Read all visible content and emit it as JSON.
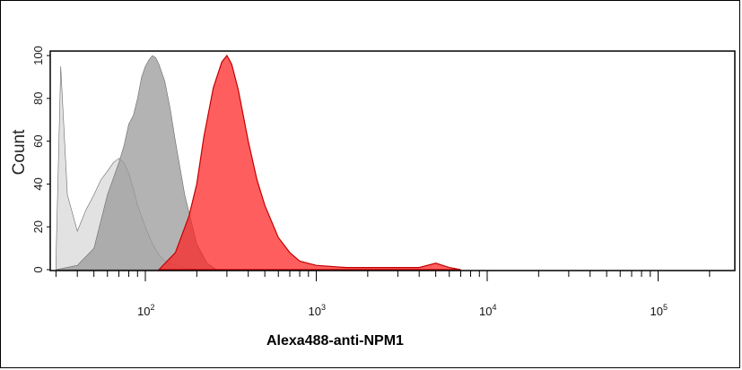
{
  "chart_data": {
    "type": "area",
    "title": "",
    "xlabel": "Alexa488-anti-NPM1",
    "ylabel": "Count",
    "x_scale": "log",
    "xlim": [
      30,
      300000
    ],
    "ylim": [
      0,
      100
    ],
    "x_tick_labels": [
      {
        "base": "10",
        "exp": "2",
        "value": 100
      },
      {
        "base": "10",
        "exp": "3",
        "value": 1000
      },
      {
        "base": "10",
        "exp": "4",
        "value": 10000
      },
      {
        "base": "10",
        "exp": "5",
        "value": 100000
      }
    ],
    "y_tick_labels": [
      "0",
      "20",
      "40",
      "60",
      "80",
      "100"
    ],
    "grid": false,
    "series": [
      {
        "color": "#d8d8d8",
        "x": [
          30,
          32,
          35,
          40,
          45,
          50,
          55,
          60,
          65,
          70,
          75,
          80,
          85,
          90,
          100,
          110,
          120,
          130,
          150,
          170,
          200
        ],
        "values": [
          5,
          95,
          35,
          18,
          28,
          35,
          42,
          46,
          50,
          52,
          50,
          45,
          38,
          30,
          20,
          12,
          7,
          4,
          2,
          1,
          0
        ]
      },
      {
        "color": "#9a9a9a",
        "x": [
          30,
          40,
          50,
          60,
          70,
          75,
          80,
          85,
          90,
          95,
          100,
          105,
          110,
          115,
          120,
          130,
          140,
          150,
          170,
          200,
          230,
          260
        ],
        "values": [
          0,
          2,
          10,
          35,
          50,
          58,
          68,
          72,
          80,
          90,
          95,
          98,
          100,
          99,
          96,
          88,
          75,
          60,
          35,
          12,
          3,
          0
        ]
      },
      {
        "color": "#ff2020",
        "x": [
          120,
          150,
          180,
          200,
          220,
          250,
          280,
          300,
          320,
          350,
          400,
          450,
          500,
          600,
          700,
          800,
          1000,
          1500,
          2000,
          3000,
          4000,
          5000,
          6000,
          7000
        ],
        "values": [
          0,
          8,
          25,
          40,
          62,
          85,
          97,
          100,
          96,
          84,
          60,
          42,
          30,
          15,
          8,
          4,
          2,
          1,
          1,
          1,
          1,
          3,
          1,
          0
        ]
      }
    ]
  }
}
